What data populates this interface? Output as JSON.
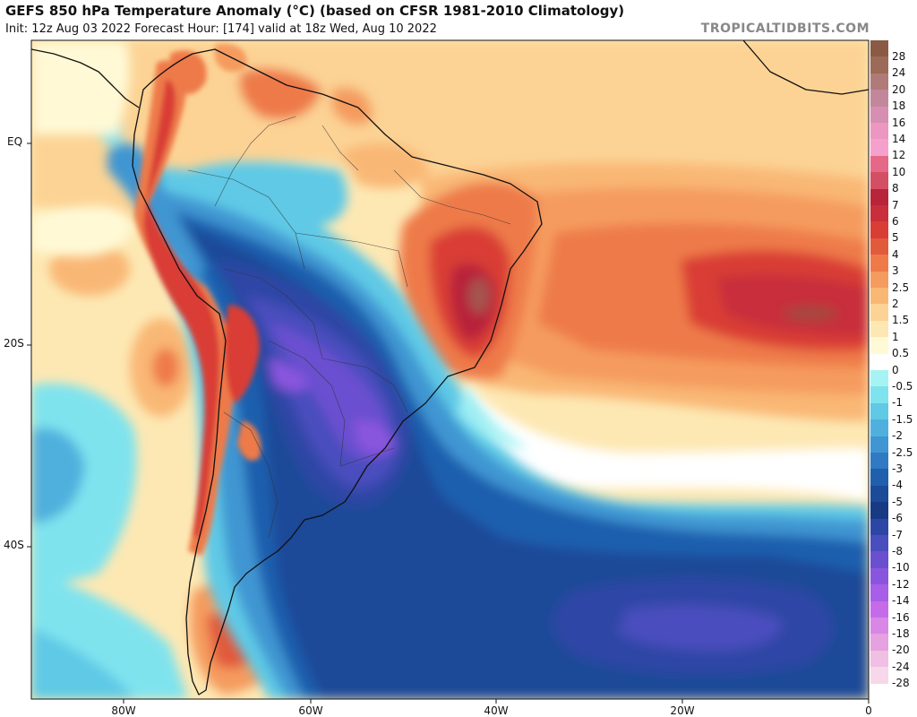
{
  "title": "GEFS 850 hPa Temperature Anomaly (°C) (based on CFSR 1981-2010 Climatology)",
  "subtitle": "Init: 12z Aug 03 2022   Forecast Hour: [174]   valid at 18z Wed, Aug 10 2022",
  "brand": "TROPICALTIDBITS.COM",
  "lat_labels": [
    "EQ",
    "20S",
    "40S"
  ],
  "lon_labels": [
    "80W",
    "60W",
    "40W",
    "20W",
    "0"
  ],
  "legend": [
    {
      "label": "28",
      "color": "#8b5a44"
    },
    {
      "label": "24",
      "color": "#9b6a58"
    },
    {
      "label": "20",
      "color": "#b07a78"
    },
    {
      "label": "18",
      "color": "#c2879a"
    },
    {
      "label": "16",
      "color": "#d68fb0"
    },
    {
      "label": "14",
      "color": "#ec96c2"
    },
    {
      "label": "12",
      "color": "#f4a2cd"
    },
    {
      "label": "10",
      "color": "#e56886"
    },
    {
      "label": "8",
      "color": "#d44f63"
    },
    {
      "label": "7",
      "color": "#b8243a"
    },
    {
      "label": "6",
      "color": "#c82f3a"
    },
    {
      "label": "5",
      "color": "#d93d36"
    },
    {
      "label": "4",
      "color": "#e25a3c"
    },
    {
      "label": "3",
      "color": "#ee7a4a"
    },
    {
      "label": "2.5",
      "color": "#f59b5f"
    },
    {
      "label": "2",
      "color": "#f9b774"
    },
    {
      "label": "1.5",
      "color": "#fcd394"
    },
    {
      "label": "1",
      "color": "#fde8b3"
    },
    {
      "label": "0.5",
      "color": "#fff9d6"
    },
    {
      "label": "0",
      "color": "#ffffff"
    },
    {
      "label": "-0.5",
      "color": "#a6f3f4"
    },
    {
      "label": "-1",
      "color": "#7fe3ee"
    },
    {
      "label": "-1.5",
      "color": "#5fc9e6"
    },
    {
      "label": "-2",
      "color": "#4fb0dd"
    },
    {
      "label": "-2.5",
      "color": "#3f96d2"
    },
    {
      "label": "-3",
      "color": "#2f7ac2"
    },
    {
      "label": "-4",
      "color": "#1f5fae"
    },
    {
      "label": "-5",
      "color": "#1a4a98"
    },
    {
      "label": "-6",
      "color": "#163b84"
    },
    {
      "label": "-7",
      "color": "#2d46a6"
    },
    {
      "label": "-8",
      "color": "#4a4dbd"
    },
    {
      "label": "-10",
      "color": "#6a4fd0"
    },
    {
      "label": "-12",
      "color": "#8a55de"
    },
    {
      "label": "-14",
      "color": "#a85ee6"
    },
    {
      "label": "-16",
      "color": "#c56be9"
    },
    {
      "label": "-18",
      "color": "#d987e6"
    },
    {
      "label": "-20",
      "color": "#e6a1e0"
    },
    {
      "label": "-24",
      "color": "#efbfe4"
    },
    {
      "label": "-28",
      "color": "#f6d8ea"
    }
  ]
}
